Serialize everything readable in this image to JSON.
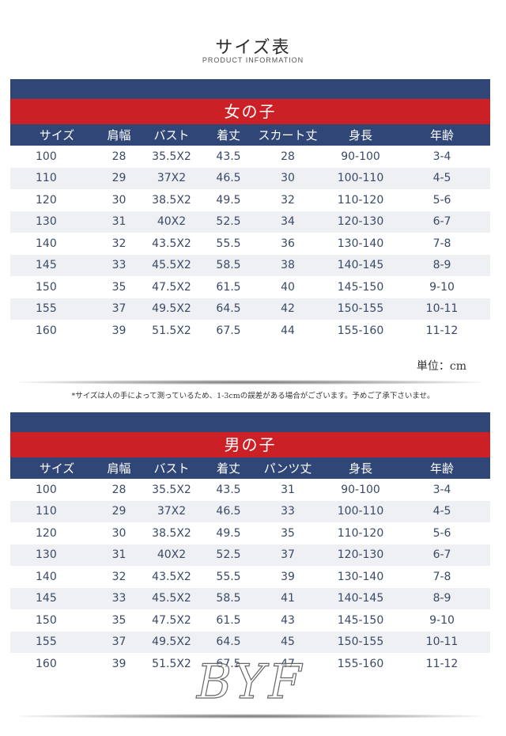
{
  "header": {
    "title": "サイズ表",
    "subtitle": "PRODUCT INFORMATION"
  },
  "girls": {
    "heading": "女の子",
    "columns": [
      "サイズ",
      "肩幅",
      "バスト",
      "着丈",
      "スカート丈",
      "身長",
      "年齢"
    ],
    "rows": [
      [
        "100",
        "28",
        "35.5X2",
        "43.5",
        "28",
        "90-100",
        "3-4"
      ],
      [
        "110",
        "29",
        "37X2",
        "46.5",
        "30",
        "100-110",
        "4-5"
      ],
      [
        "120",
        "30",
        "38.5X2",
        "49.5",
        "32",
        "110-120",
        "5-6"
      ],
      [
        "130",
        "31",
        "40X2",
        "52.5",
        "34",
        "120-130",
        "6-7"
      ],
      [
        "140",
        "32",
        "43.5X2",
        "55.5",
        "36",
        "130-140",
        "7-8"
      ],
      [
        "145",
        "33",
        "45.5X2",
        "58.5",
        "38",
        "140-145",
        "8-9"
      ],
      [
        "150",
        "35",
        "47.5X2",
        "61.5",
        "40",
        "145-150",
        "9-10"
      ],
      [
        "155",
        "37",
        "49.5X2",
        "64.5",
        "42",
        "150-155",
        "10-11"
      ],
      [
        "160",
        "39",
        "51.5X2",
        "67.5",
        "44",
        "155-160",
        "11-12"
      ]
    ]
  },
  "unit_label": "単位：cm",
  "note": "*サイズは人の手によって測っているため、1-3cmの誤差がある場合がございます。予めご了承下さいませ。",
  "boys": {
    "heading": "男の子",
    "columns": [
      "サイズ",
      "肩幅",
      "バスト",
      "着丈",
      "パンツ丈",
      "身長",
      "年齢"
    ],
    "rows": [
      [
        "100",
        "28",
        "35.5X2",
        "43.5",
        "31",
        "90-100",
        "3-4"
      ],
      [
        "110",
        "29",
        "37X2",
        "46.5",
        "33",
        "100-110",
        "4-5"
      ],
      [
        "120",
        "30",
        "38.5X2",
        "49.5",
        "35",
        "110-120",
        "5-6"
      ],
      [
        "130",
        "31",
        "40X2",
        "52.5",
        "37",
        "120-130",
        "6-7"
      ],
      [
        "140",
        "32",
        "43.5X2",
        "55.5",
        "39",
        "130-140",
        "7-8"
      ],
      [
        "145",
        "33",
        "45.5X2",
        "58.5",
        "41",
        "140-145",
        "8-9"
      ],
      [
        "150",
        "35",
        "47.5X2",
        "61.5",
        "43",
        "145-150",
        "9-10"
      ],
      [
        "155",
        "37",
        "49.5X2",
        "64.5",
        "45",
        "150-155",
        "10-11"
      ],
      [
        "160",
        "39",
        "51.5X2",
        "67.5",
        "47",
        "155-160",
        "11-12"
      ]
    ]
  },
  "watermark": "BYF",
  "colors": {
    "navy": "#2f4677",
    "red": "#cc2027",
    "row_alt": "#eef0f3",
    "text": "#3a4a66"
  }
}
